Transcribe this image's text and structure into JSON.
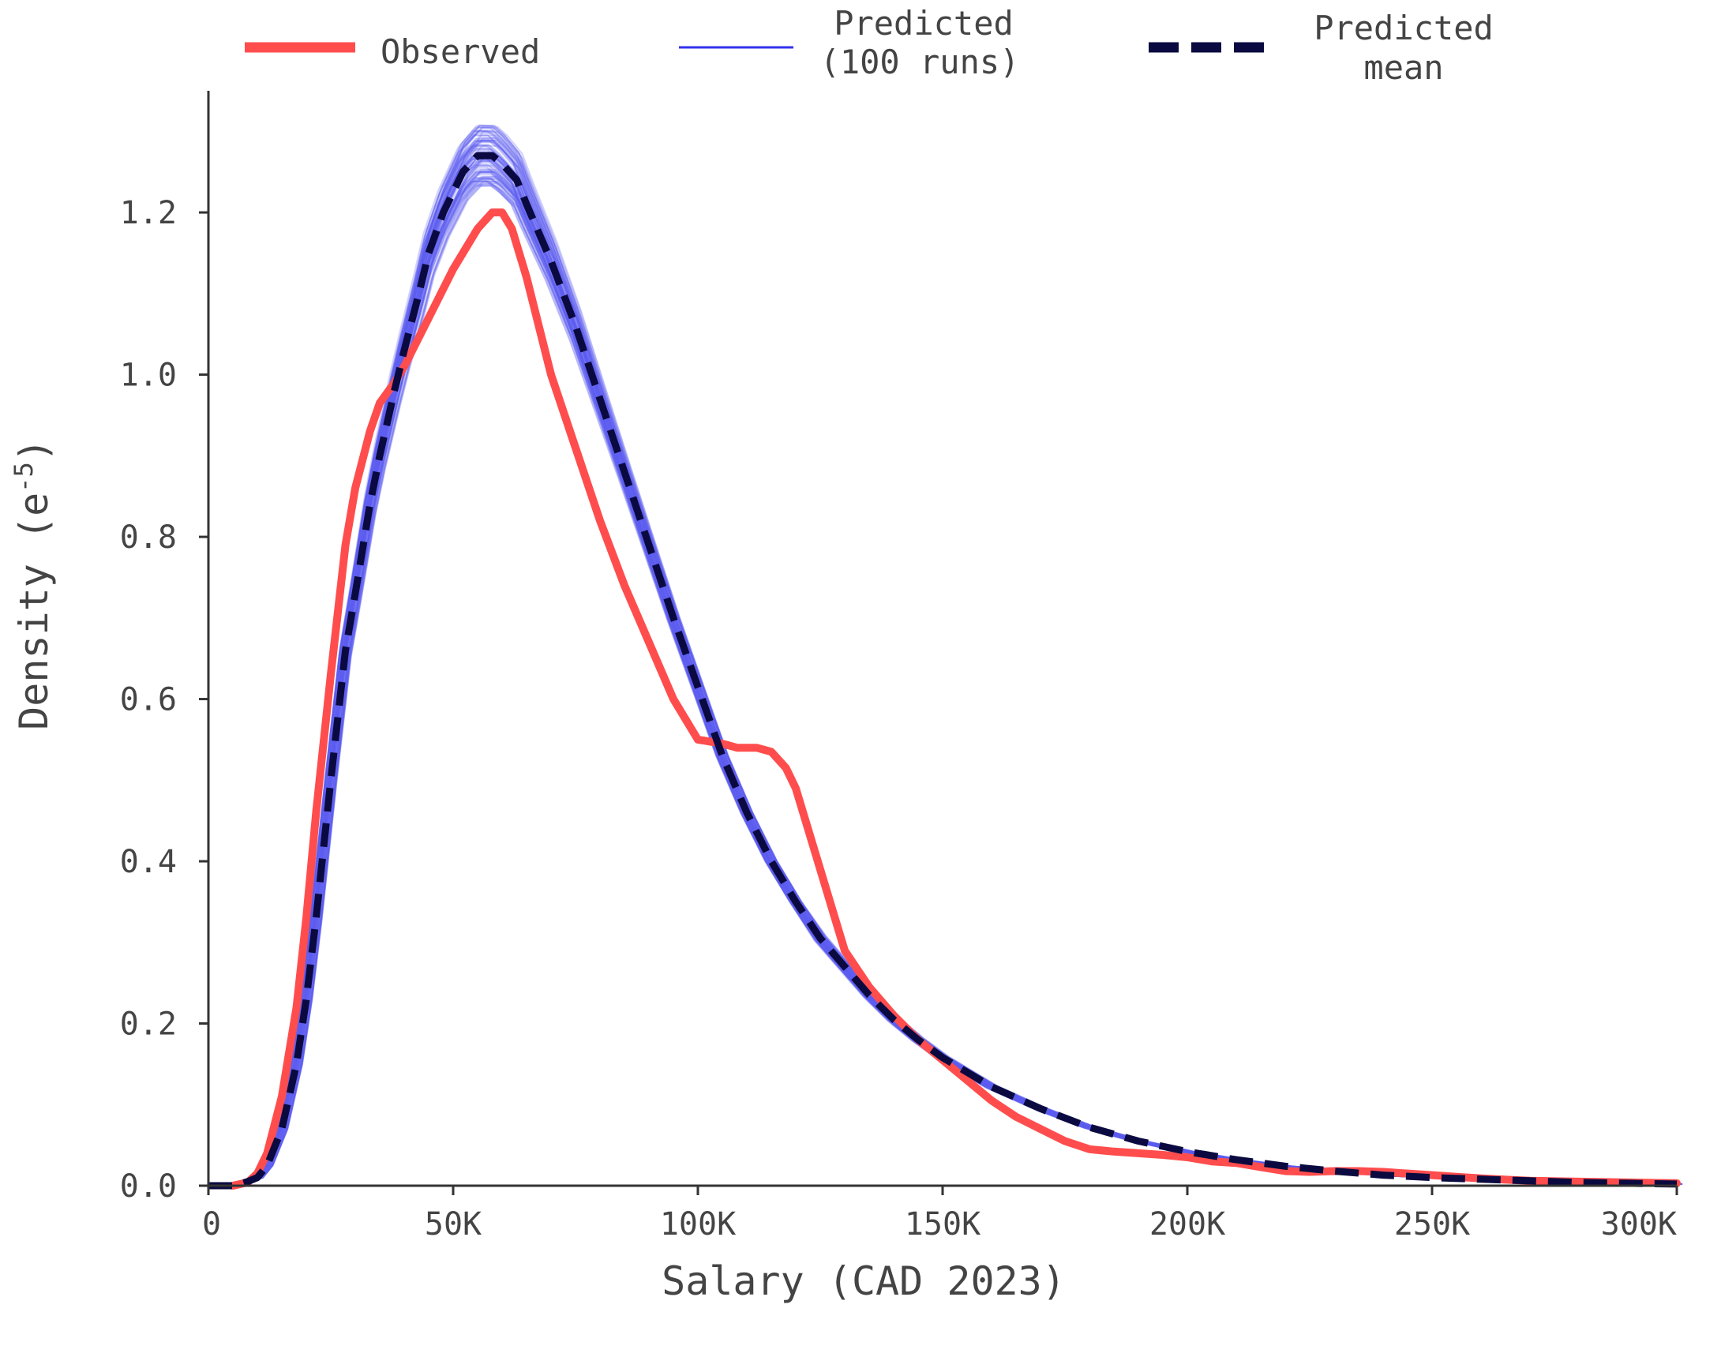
{
  "chart_data": {
    "type": "line",
    "xlabel": "Salary (CAD 2023)",
    "ylabel": "Density (e",
    "ylabel_exponent": "-5",
    "ylabel_close": ")",
    "xlim": [
      0,
      300000
    ],
    "ylim": [
      0,
      1.35
    ],
    "x_ticks": [
      0,
      50000,
      100000,
      150000,
      200000,
      250000,
      300000
    ],
    "x_tick_labels": [
      "0",
      "50K",
      "100K",
      "150K",
      "200K",
      "250K",
      "300K"
    ],
    "y_ticks": [
      0.0,
      0.2,
      0.4,
      0.6,
      0.8,
      1.0,
      1.2
    ],
    "y_tick_labels": [
      "0.0",
      "0.2",
      "0.4",
      "0.6",
      "0.8",
      "1.0",
      "1.2"
    ],
    "grid": false,
    "legend_position": "top",
    "series": [
      {
        "name": "Observed",
        "color": "#ff4d4d",
        "style": "solid",
        "x": [
          5000,
          8000,
          10000,
          12000,
          15000,
          18000,
          20000,
          22000,
          25000,
          28000,
          30000,
          33000,
          35000,
          38000,
          40000,
          45000,
          50000,
          55000,
          58000,
          60000,
          62000,
          65000,
          70000,
          75000,
          80000,
          85000,
          90000,
          95000,
          100000,
          105000,
          108000,
          112000,
          115000,
          118000,
          120000,
          122000,
          125000,
          128000,
          130000,
          135000,
          140000,
          145000,
          150000,
          155000,
          160000,
          165000,
          170000,
          175000,
          180000,
          185000,
          190000,
          195000,
          200000,
          205000,
          210000,
          215000,
          220000,
          225000,
          230000,
          235000,
          240000,
          245000,
          250000,
          255000,
          260000,
          270000,
          280000,
          290000,
          300000
        ],
        "y": [
          0.0,
          0.004,
          0.015,
          0.04,
          0.11,
          0.22,
          0.33,
          0.46,
          0.63,
          0.79,
          0.86,
          0.93,
          0.965,
          0.99,
          1.01,
          1.07,
          1.13,
          1.18,
          1.2,
          1.2,
          1.18,
          1.12,
          1.0,
          0.91,
          0.82,
          0.74,
          0.67,
          0.6,
          0.55,
          0.545,
          0.54,
          0.54,
          0.535,
          0.515,
          0.49,
          0.45,
          0.39,
          0.33,
          0.29,
          0.245,
          0.21,
          0.18,
          0.155,
          0.13,
          0.105,
          0.085,
          0.07,
          0.055,
          0.045,
          0.042,
          0.04,
          0.038,
          0.035,
          0.03,
          0.028,
          0.023,
          0.018,
          0.017,
          0.018,
          0.018,
          0.017,
          0.015,
          0.013,
          0.011,
          0.009,
          0.006,
          0.005,
          0.004,
          0.003
        ]
      },
      {
        "name": "Predicted (100 runs)",
        "legend_lines": [
          "Predicted",
          "(100 runs)"
        ],
        "color": "#5c5cf0",
        "style": "thin",
        "runs": 100
      },
      {
        "name": "Predicted mean",
        "legend_lines": [
          "Predicted",
          "mean"
        ],
        "color": "#0a0a40",
        "style": "dashed",
        "x": [
          0,
          5000,
          8000,
          10000,
          12000,
          15000,
          18000,
          20000,
          22000,
          25000,
          28000,
          30000,
          33000,
          35000,
          38000,
          40000,
          43000,
          45000,
          48000,
          50000,
          52000,
          55000,
          58000,
          60000,
          63000,
          65000,
          70000,
          75000,
          80000,
          85000,
          90000,
          95000,
          100000,
          105000,
          110000,
          115000,
          120000,
          125000,
          130000,
          135000,
          140000,
          145000,
          150000,
          155000,
          160000,
          170000,
          180000,
          190000,
          200000,
          210000,
          220000,
          230000,
          240000,
          250000,
          260000,
          270000,
          280000,
          290000,
          300000
        ],
        "y": [
          0.0,
          0.0,
          0.005,
          0.01,
          0.025,
          0.07,
          0.15,
          0.23,
          0.33,
          0.5,
          0.66,
          0.73,
          0.84,
          0.9,
          0.98,
          1.03,
          1.1,
          1.15,
          1.2,
          1.225,
          1.25,
          1.27,
          1.27,
          1.26,
          1.24,
          1.21,
          1.14,
          1.06,
          0.97,
          0.88,
          0.79,
          0.7,
          0.615,
          0.53,
          0.46,
          0.4,
          0.35,
          0.305,
          0.27,
          0.235,
          0.205,
          0.18,
          0.158,
          0.14,
          0.122,
          0.095,
          0.072,
          0.055,
          0.042,
          0.032,
          0.024,
          0.018,
          0.013,
          0.01,
          0.008,
          0.006,
          0.004,
          0.003,
          0.002
        ]
      }
    ]
  }
}
